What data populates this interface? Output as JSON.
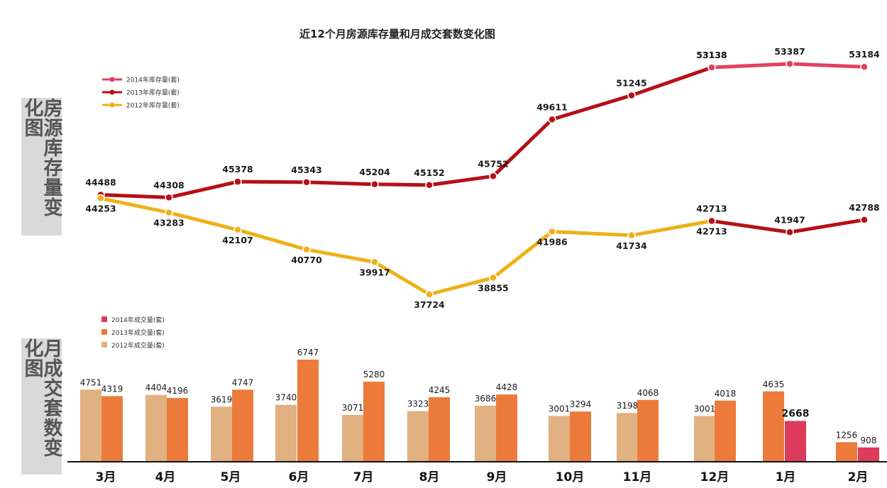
{
  "title": "近12个月房源库存量和月成交套数变化图",
  "side_labels": {
    "top": "房源库存量变化图",
    "bottom": "月成交套数变化图"
  },
  "colors": {
    "s2014": "#e0425f",
    "s2013": "#b51016",
    "s2012": "#edb118",
    "b2014": "#dd3b5b",
    "b2013": "#ec7b3b",
    "b2012": "#e2b181"
  },
  "chart_data": [
    {
      "type": "line",
      "title": "近12个月房源库存量和月成交套数变化图",
      "categories": [
        "3月",
        "4月",
        "5月",
        "6月",
        "7月",
        "8月",
        "9月",
        "10月",
        "11月",
        "12月",
        "1月",
        "2月"
      ],
      "ylabel": "房源库存量变化图",
      "legend": [
        "2014年库存量(套)",
        "2013年库存量(套)",
        "2012年库存量(套)"
      ],
      "legend_position": "top-left",
      "ylim": [
        37000,
        54000
      ],
      "series": [
        {
          "name": "2013年库存量(套)",
          "key": "s2013",
          "values": [
            44488,
            44308,
            45378,
            45343,
            45204,
            45152,
            45752,
            49611,
            51245,
            53138,
            null,
            null
          ]
        },
        {
          "name": "2014年库存量(套)",
          "key": "s2014",
          "values": [
            null,
            null,
            null,
            null,
            null,
            null,
            null,
            null,
            null,
            53138,
            53387,
            53184
          ]
        },
        {
          "name": "2012年库存量(套)",
          "key": "s2012",
          "values": [
            44253,
            43283,
            42107,
            40770,
            39917,
            37724,
            38855,
            41986,
            41734,
            42713,
            null,
            null
          ]
        },
        {
          "name": "2013年库存量(套)",
          "key": "s2013",
          "values": [
            null,
            null,
            null,
            null,
            null,
            null,
            null,
            null,
            null,
            42713,
            41947,
            42788
          ]
        }
      ]
    },
    {
      "type": "bar",
      "categories": [
        "3月",
        "4月",
        "5月",
        "6月",
        "7月",
        "8月",
        "9月",
        "10月",
        "11月",
        "12月",
        "1月",
        "2月"
      ],
      "ylabel": "月成交套数变化图",
      "legend": [
        "2014年成交量(套)",
        "2013年成交量(套)",
        "2012年成交量(套)"
      ],
      "legend_position": "top-left",
      "ylim": [
        0,
        7000
      ],
      "pairs": [
        [
          {
            "v": 4751,
            "s": "b2012"
          },
          {
            "v": 4319,
            "s": "b2013"
          }
        ],
        [
          {
            "v": 4404,
            "s": "b2012"
          },
          {
            "v": 4196,
            "s": "b2013"
          }
        ],
        [
          {
            "v": 3619,
            "s": "b2012"
          },
          {
            "v": 4747,
            "s": "b2013"
          }
        ],
        [
          {
            "v": 3740,
            "s": "b2012"
          },
          {
            "v": 6747,
            "s": "b2013"
          }
        ],
        [
          {
            "v": 3071,
            "s": "b2012"
          },
          {
            "v": 5280,
            "s": "b2013"
          }
        ],
        [
          {
            "v": 3323,
            "s": "b2012"
          },
          {
            "v": 4245,
            "s": "b2013"
          }
        ],
        [
          {
            "v": 3686,
            "s": "b2012"
          },
          {
            "v": 4428,
            "s": "b2013"
          }
        ],
        [
          {
            "v": 3001,
            "s": "b2012"
          },
          {
            "v": 3294,
            "s": "b2013"
          }
        ],
        [
          {
            "v": 3198,
            "s": "b2012"
          },
          {
            "v": 4068,
            "s": "b2013"
          }
        ],
        [
          {
            "v": 3001,
            "s": "b2012"
          },
          {
            "v": 4018,
            "s": "b2013"
          }
        ],
        [
          {
            "v": 4635,
            "s": "b2013"
          },
          {
            "v": 2668,
            "s": "b2014"
          }
        ],
        [
          {
            "v": 1256,
            "s": "b2013"
          },
          {
            "v": 908,
            "s": "b2014"
          }
        ]
      ]
    }
  ]
}
